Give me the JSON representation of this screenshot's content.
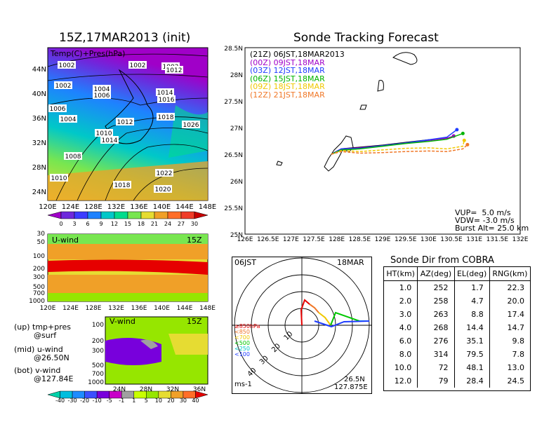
{
  "left_title": "15Z,17MAR2013 (init)",
  "right_title": "Sonde Tracking Forecast",
  "map_panel": {
    "label": "Temp(C)+Pres(hPa)",
    "lat_labels": [
      "44N",
      "40N",
      "36N",
      "32N",
      "28N",
      "24N"
    ],
    "lon_labels": [
      "120E",
      "124E",
      "128E",
      "132E",
      "136E",
      "140E",
      "144E",
      "148E"
    ],
    "pressure_labels": [
      "1002",
      "1002",
      "1002",
      "1002",
      "1012",
      "1004",
      "1006",
      "1006",
      "1014",
      "1016",
      "1004",
      "1012",
      "1018",
      "1026",
      "1010",
      "1014",
      "1008",
      "1022",
      "1010",
      "1018",
      "1020"
    ],
    "colorbar_labels": [
      "0",
      "3",
      "6",
      "9",
      "12",
      "15",
      "18",
      "21",
      "24",
      "27",
      "30"
    ],
    "colorbar_colors": [
      "#a000c8",
      "#6e28dc",
      "#3c3cff",
      "#1e82ff",
      "#00c8c8",
      "#00dc8c",
      "#78e650",
      "#e6dc32",
      "#f0a028",
      "#ff6e28",
      "#f03c28",
      "#c80000"
    ]
  },
  "u_panel": {
    "label": "U-wind",
    "time": "15Z",
    "p_labels": [
      "30",
      "50",
      "100",
      "200",
      "300",
      "500",
      "700",
      "1000"
    ],
    "lon_labels": [
      "120E",
      "124E",
      "128E",
      "132E",
      "136E",
      "140E",
      "144E",
      "148E"
    ]
  },
  "v_panel": {
    "label": "V-wind",
    "time": "15Z",
    "p_labels": [
      "100",
      "200",
      "300",
      "500",
      "700",
      "1000"
    ],
    "lat_labels": [
      "24N",
      "28N",
      "32N",
      "36N"
    ]
  },
  "wind_colorbar": {
    "labels": [
      "-40",
      "-30",
      "-20",
      "-10",
      "-5",
      "-1",
      "1",
      "5",
      "10",
      "20",
      "30",
      "40"
    ],
    "colors": [
      "#00d2aa",
      "#00bede",
      "#1e8cff",
      "#3c50ff",
      "#7800dc",
      "#c800c8",
      "#a0a0a0",
      "#c8ff00",
      "#96e600",
      "#e6dc32",
      "#f0a028",
      "#ff6e28",
      "#e60000"
    ]
  },
  "legend_notes": {
    "up": "(up) tmp+pres",
    "up2": "@surf",
    "mid": "(mid) u-wind",
    "mid2": "@26.50N",
    "bot": "(bot) v-wind",
    "bot2": "@127.84E"
  },
  "track": {
    "legend": [
      {
        "text": "(21Z) 06JST,18MAR2013",
        "color": "#000000"
      },
      {
        "text": "(00Z) 09JST,18MAR",
        "color": "#a000c8"
      },
      {
        "text": "(03Z) 12JST,18MAR",
        "color": "#1e3cff"
      },
      {
        "text": "(06Z) 15JST,18MAR",
        "color": "#00b400"
      },
      {
        "text": "(09Z) 18JST,18MAR",
        "color": "#f0c800"
      },
      {
        "text": "(12Z) 21JST,18MAR",
        "color": "#f07828"
      }
    ],
    "y_labels": [
      "28.5N",
      "28N",
      "27.5N",
      "27N",
      "26.5N",
      "26N",
      "25.5N",
      "25N"
    ],
    "x_labels": [
      "126E",
      "126.5E",
      "127E",
      "127.5E",
      "128E",
      "128.5E",
      "129E",
      "129.5E",
      "130E",
      "130.5E",
      "131E",
      "131.5E",
      "132E"
    ],
    "vup": "VUP=  5.0 m/s",
    "vdw": "VDW= -3.0 m/s",
    "burst": "Burst Alt= 25.0 km"
  },
  "polar": {
    "tl": "06JST",
    "tr": "18MAR",
    "ring_labels": [
      "10",
      "20",
      "30",
      "40"
    ],
    "legend": [
      {
        "text": "≥850hPa",
        "color": "#e60000"
      },
      {
        "text": "<850",
        "color": "#f07828"
      },
      {
        "text": "<700",
        "color": "#f0c800"
      },
      {
        "text": "<500",
        "color": "#00c800"
      },
      {
        "text": "<250",
        "color": "#00c8c8"
      },
      {
        "text": "<100",
        "color": "#1e3cff"
      }
    ],
    "units": "ms-1",
    "pos1": "26.5N",
    "pos2": "127.875E"
  },
  "sonde_table": {
    "title": "Sonde Dir from COBRA",
    "headers": [
      "HT(km)",
      "AZ(deg)",
      "EL(deg)",
      "RNG(km)"
    ],
    "rows": [
      [
        "1.0",
        "252",
        "1.7",
        "22.3"
      ],
      [
        "2.0",
        "258",
        "4.7",
        "20.0"
      ],
      [
        "3.0",
        "263",
        "8.8",
        "17.4"
      ],
      [
        "4.0",
        "268",
        "14.4",
        "14.7"
      ],
      [
        "6.0",
        "276",
        "35.1",
        "9.8"
      ],
      [
        "8.0",
        "314",
        "79.5",
        "7.8"
      ],
      [
        "10.0",
        "72",
        "48.1",
        "13.0"
      ],
      [
        "12.0",
        "79",
        "28.4",
        "24.5"
      ]
    ]
  },
  "chart_data": [
    {
      "type": "line",
      "title": "Sonde Tracking Forecast",
      "xlim": [
        126,
        132
      ],
      "ylim": [
        25,
        28.5
      ],
      "series": [
        {
          "name": "(21Z) 06JST,18MAR2013",
          "x": [
            127.88,
            128.1,
            128.5,
            129.0,
            129.5,
            130.0,
            130.4,
            130.55
          ],
          "y": [
            26.5,
            26.6,
            26.63,
            26.67,
            26.72,
            26.77,
            26.8,
            26.84
          ]
        },
        {
          "name": "(00Z) 09JST,18MAR",
          "x": [
            127.88,
            128.1,
            128.5,
            129.0,
            129.5,
            130.0,
            130.4,
            130.55
          ],
          "y": [
            26.5,
            26.6,
            26.62,
            26.66,
            26.71,
            26.76,
            26.8,
            26.84
          ]
        },
        {
          "name": "(03Z) 12JST,18MAR",
          "x": [
            127.88,
            128.1,
            128.5,
            129.0,
            129.5,
            130.0,
            130.4,
            130.62
          ],
          "y": [
            26.5,
            26.6,
            26.61,
            26.66,
            26.71,
            26.77,
            26.82,
            26.96
          ]
        },
        {
          "name": "(06Z) 15JST,18MAR",
          "x": [
            127.88,
            128.1,
            128.5,
            129.0,
            129.5,
            130.0,
            130.4,
            130.75
          ],
          "y": [
            26.5,
            26.58,
            26.6,
            26.65,
            26.7,
            26.74,
            26.78,
            26.89
          ]
        },
        {
          "name": "(09Z) 18JST,18MAR",
          "x": [
            127.88,
            128.1,
            128.5,
            129.0,
            129.5,
            130.0,
            130.4,
            130.75,
            130.78
          ],
          "y": [
            26.5,
            26.57,
            26.55,
            26.58,
            26.61,
            26.62,
            26.6,
            26.65,
            26.76
          ]
        },
        {
          "name": "(12Z) 21JST,18MAR",
          "x": [
            127.88,
            128.1,
            128.5,
            129.0,
            129.5,
            130.0,
            130.4,
            130.75,
            130.85
          ],
          "y": [
            26.5,
            26.55,
            26.52,
            26.53,
            26.55,
            26.56,
            26.55,
            26.6,
            26.68
          ]
        }
      ]
    },
    {
      "type": "table",
      "title": "Sonde Dir from COBRA",
      "columns": [
        "HT(km)",
        "AZ(deg)",
        "EL(deg)",
        "RNG(km)"
      ],
      "rows": [
        [
          1.0,
          252,
          1.7,
          22.3
        ],
        [
          2.0,
          258,
          4.7,
          20.0
        ],
        [
          3.0,
          263,
          8.8,
          17.4
        ],
        [
          4.0,
          268,
          14.4,
          14.7
        ],
        [
          6.0,
          276,
          35.1,
          9.8
        ],
        [
          8.0,
          314,
          79.5,
          7.8
        ],
        [
          10.0,
          72,
          48.1,
          13.0
        ],
        [
          12.0,
          79,
          28.4,
          24.5
        ]
      ]
    }
  ]
}
